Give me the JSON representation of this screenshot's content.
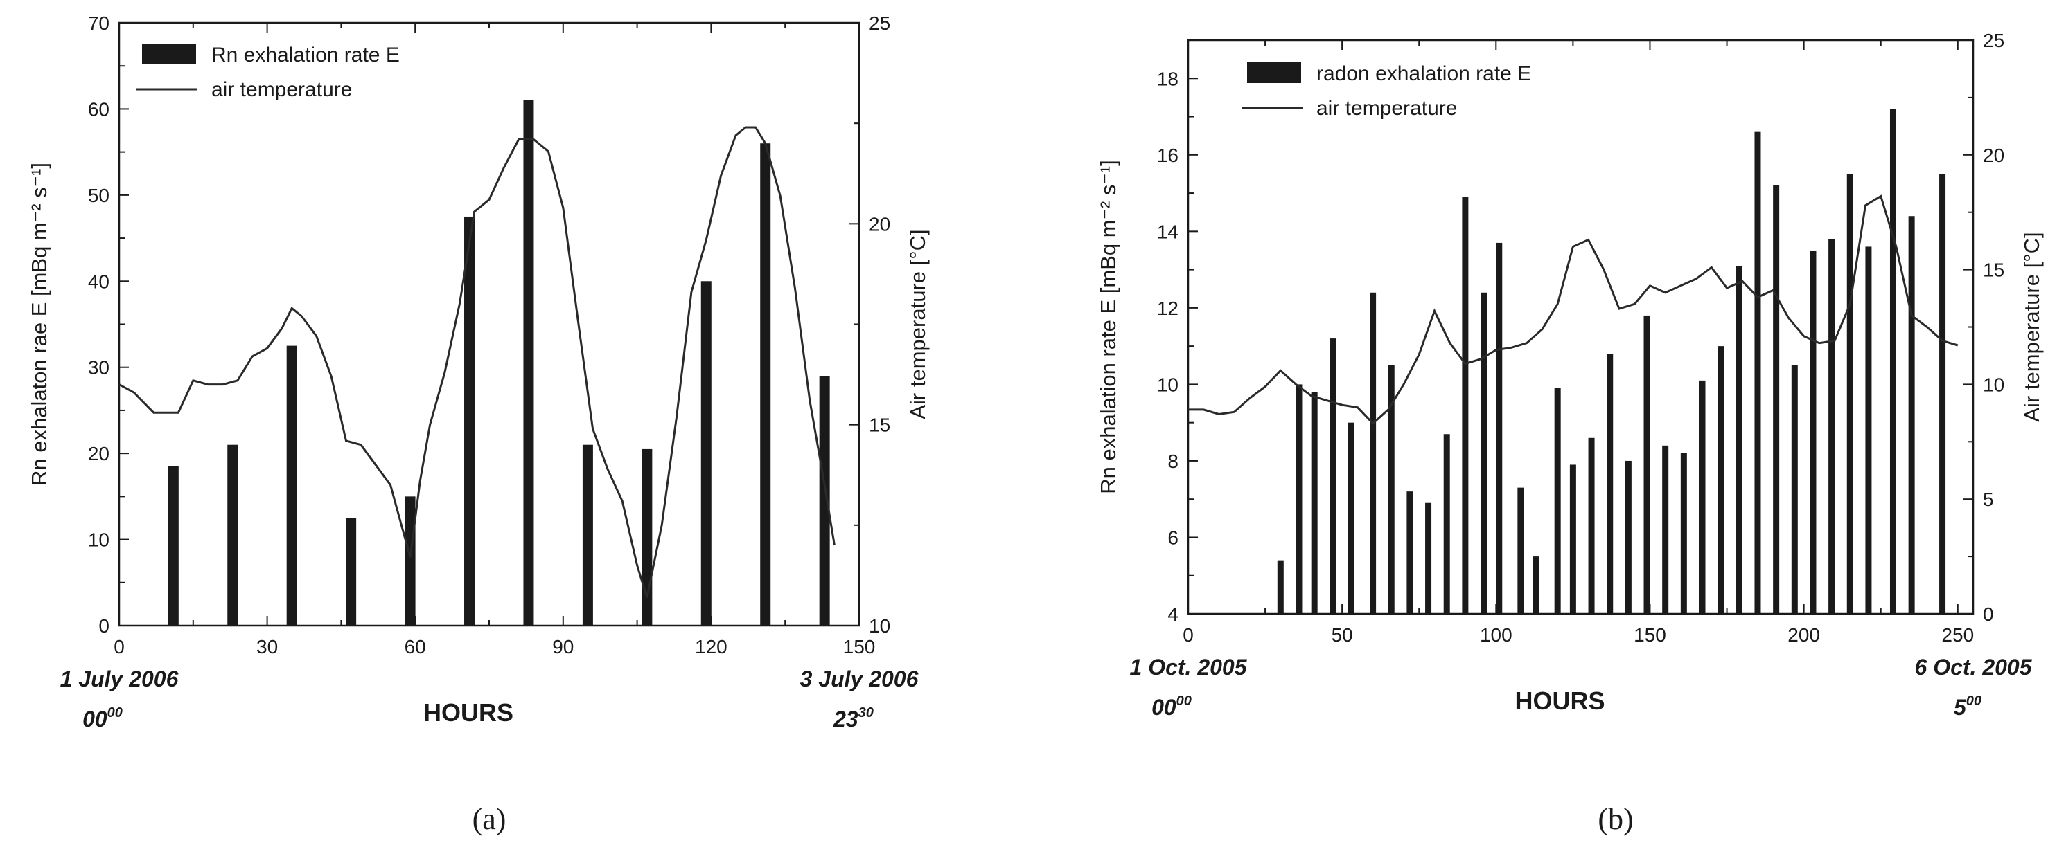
{
  "chart_data": [
    {
      "type": "bar",
      "panel": "a",
      "caption": "(a)",
      "legend": {
        "bar": "Rn exhalation rate E",
        "line": "air temperature",
        "position": "top-left"
      },
      "xlabel": "HOURS",
      "ylabel_left": "Rn exhalaton rae E  [mBq m⁻² s⁻¹]",
      "ylabel_right": "Air temperature [°C]",
      "xlim": [
        0,
        150
      ],
      "ylim_left": [
        0,
        70
      ],
      "ylim_right": [
        10,
        25
      ],
      "x_ticks": [
        0,
        30,
        60,
        90,
        120,
        150
      ],
      "y_left_ticks": [
        0,
        10,
        20,
        30,
        40,
        50,
        60,
        70
      ],
      "y_right_ticks": [
        10,
        15,
        20,
        25
      ],
      "start_date": "1 July 2006",
      "start_time": "00",
      "start_time_sup": "00",
      "end_date": "3 July 2006",
      "end_time": "23",
      "end_time_sup": "30",
      "bars": {
        "name": "Rn exhalation rate E",
        "x": [
          11,
          23,
          35,
          47,
          59,
          71,
          83,
          95,
          107,
          119,
          131,
          143
        ],
        "values": [
          18.5,
          21,
          32.5,
          12.5,
          15,
          47.5,
          61,
          21,
          20.5,
          40,
          56,
          29
        ]
      },
      "line": {
        "name": "air temperature",
        "x": [
          0,
          3,
          7,
          12,
          15,
          18,
          21,
          24,
          27,
          30,
          33,
          35,
          37,
          40,
          43,
          46,
          49,
          52,
          55,
          57,
          59,
          61,
          63,
          66,
          69,
          72,
          75,
          78,
          81,
          84,
          87,
          90,
          93,
          96,
          99,
          102,
          105,
          107,
          110,
          113,
          116,
          119,
          122,
          125,
          127,
          129,
          131,
          134,
          137,
          140,
          143,
          145
        ],
        "values": [
          16.0,
          15.8,
          15.3,
          15.3,
          16.1,
          16.0,
          16.0,
          16.1,
          16.7,
          16.9,
          17.4,
          17.9,
          17.7,
          17.2,
          16.2,
          14.6,
          14.5,
          14.0,
          13.5,
          12.6,
          11.7,
          13.6,
          15.0,
          16.3,
          18.0,
          20.3,
          20.6,
          21.4,
          22.1,
          22.1,
          21.8,
          20.4,
          17.6,
          14.9,
          13.9,
          13.1,
          11.5,
          10.7,
          12.5,
          15.2,
          18.3,
          19.6,
          21.2,
          22.2,
          22.4,
          22.4,
          22.0,
          20.7,
          18.4,
          15.6,
          13.5,
          12.0
        ]
      }
    },
    {
      "type": "bar",
      "panel": "b",
      "caption": "(b)",
      "legend": {
        "bar": "radon exhalation rate E",
        "line": "air temperature",
        "position": "top-left"
      },
      "xlabel": "HOURS",
      "ylabel_left": "Rn exhalation rate E  [mBq m⁻² s⁻¹]",
      "ylabel_right": "Air temperature [°C]",
      "xlim": [
        0,
        255
      ],
      "ylim_left": [
        4,
        19
      ],
      "ylim_right": [
        0,
        25
      ],
      "x_ticks": [
        0,
        50,
        100,
        150,
        200,
        250
      ],
      "y_left_ticks": [
        4,
        6,
        8,
        10,
        12,
        14,
        16,
        18
      ],
      "y_right_ticks": [
        0,
        5,
        10,
        15,
        20,
        25
      ],
      "start_date": "1 Oct. 2005",
      "start_time": "00",
      "start_time_sup": "00",
      "end_date": "6 Oct. 2005",
      "end_time": "5",
      "end_time_sup": "00",
      "bars": {
        "name": "radon exhalation rate E",
        "x": [
          30,
          36,
          41,
          47,
          53,
          60,
          66,
          72,
          78,
          84,
          90,
          96,
          101,
          108,
          113,
          120,
          125,
          131,
          137,
          143,
          149,
          155,
          161,
          167,
          173,
          179,
          185,
          191,
          197,
          203,
          209,
          215,
          221,
          229,
          235,
          245
        ],
        "values": [
          5.4,
          10,
          9.8,
          11.2,
          9.0,
          12.4,
          10.5,
          7.2,
          6.9,
          8.7,
          14.9,
          12.4,
          13.7,
          7.3,
          5.5,
          9.9,
          7.9,
          8.6,
          10.8,
          8.0,
          11.8,
          8.4,
          8.2,
          10.1,
          11.0,
          13.1,
          16.6,
          15.2,
          10.5,
          13.5,
          13.8,
          15.5,
          13.6,
          17.2,
          14.4,
          15.5
        ]
      },
      "line": {
        "name": "air temperature",
        "x": [
          0,
          5,
          10,
          15,
          20,
          25,
          30,
          35,
          40,
          45,
          50,
          55,
          60,
          65,
          70,
          75,
          80,
          85,
          90,
          95,
          100,
          105,
          110,
          115,
          120,
          125,
          130,
          135,
          140,
          145,
          150,
          155,
          160,
          165,
          170,
          175,
          180,
          185,
          190,
          195,
          200,
          205,
          210,
          215,
          220,
          225,
          230,
          235,
          240,
          245,
          250
        ],
        "values": [
          8.9,
          8.9,
          8.7,
          8.8,
          9.4,
          9.9,
          10.6,
          10.0,
          9.5,
          9.3,
          9.1,
          9.0,
          8.3,
          8.9,
          10.0,
          11.3,
          13.2,
          11.8,
          10.9,
          11.1,
          11.5,
          11.6,
          11.8,
          12.4,
          13.5,
          16.0,
          16.3,
          15.0,
          13.3,
          13.5,
          14.3,
          14.0,
          14.3,
          14.6,
          15.1,
          14.2,
          14.5,
          13.8,
          14.1,
          12.9,
          12.1,
          11.8,
          11.9,
          13.5,
          17.8,
          18.2,
          16.0,
          13.0,
          12.5,
          11.9,
          11.7
        ]
      }
    }
  ]
}
